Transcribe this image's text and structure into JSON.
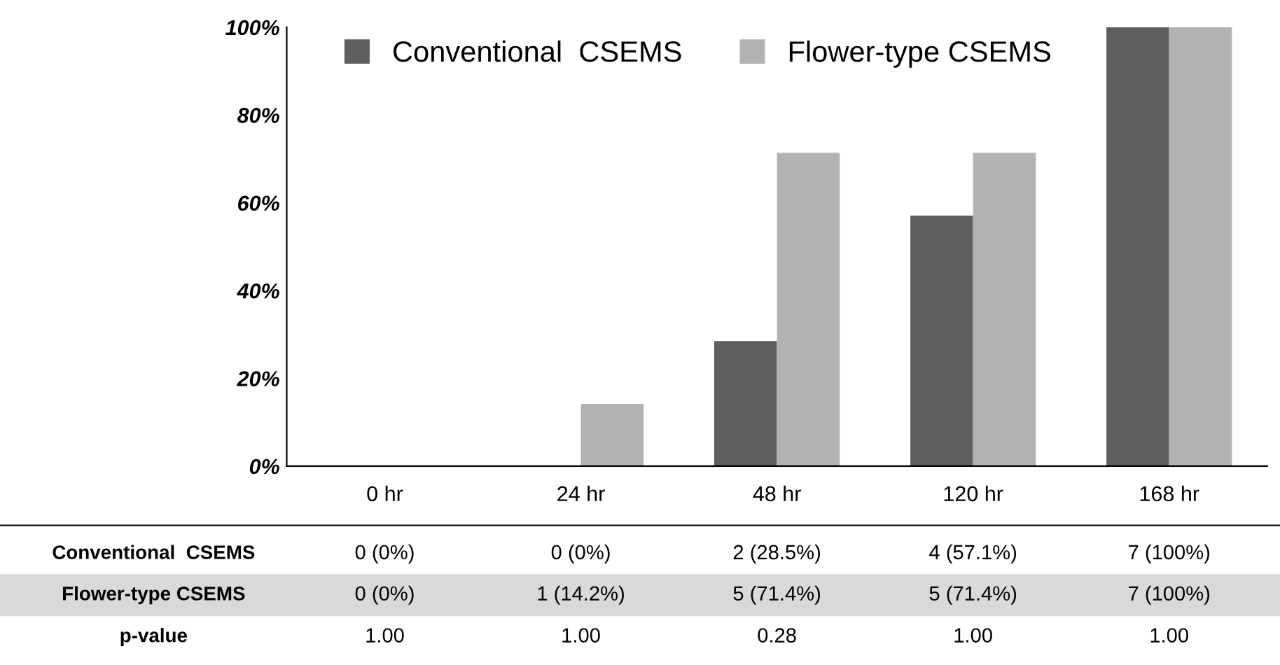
{
  "chart_data": {
    "type": "bar",
    "categories": [
      "0 hr",
      "24 hr",
      "48 hr",
      "120 hr",
      "168 hr"
    ],
    "series": [
      {
        "name": "Conventional  CSEMS",
        "color": "#5f5f5f",
        "values": [
          0,
          0,
          28.5,
          57.1,
          100
        ],
        "value_labels": [
          "0 (0%)",
          "0 (0%)",
          "2 (28.5%)",
          "4 (57.1%)",
          "7 (100%)"
        ]
      },
      {
        "name": "Flower-type CSEMS",
        "color": "#b2b2b2",
        "values": [
          0,
          14.2,
          71.4,
          71.4,
          100
        ],
        "value_labels": [
          "0 (0%)",
          "1 (14.2%)",
          "5 (71.4%)",
          "5 (71.4%)",
          "7 (100%)"
        ]
      }
    ],
    "ylim": [
      0,
      100
    ],
    "yticks": [
      {
        "value": 0,
        "label": "0%"
      },
      {
        "value": 20,
        "label": "20%"
      },
      {
        "value": 40,
        "label": "40%"
      },
      {
        "value": 60,
        "label": "60%"
      },
      {
        "value": 80,
        "label": "80%"
      },
      {
        "value": 100,
        "label": "100%"
      }
    ],
    "legend": "top",
    "annotations": [
      "p-value",
      "1.00",
      "1.00",
      "0.28",
      "1.00",
      "1.00"
    ]
  }
}
